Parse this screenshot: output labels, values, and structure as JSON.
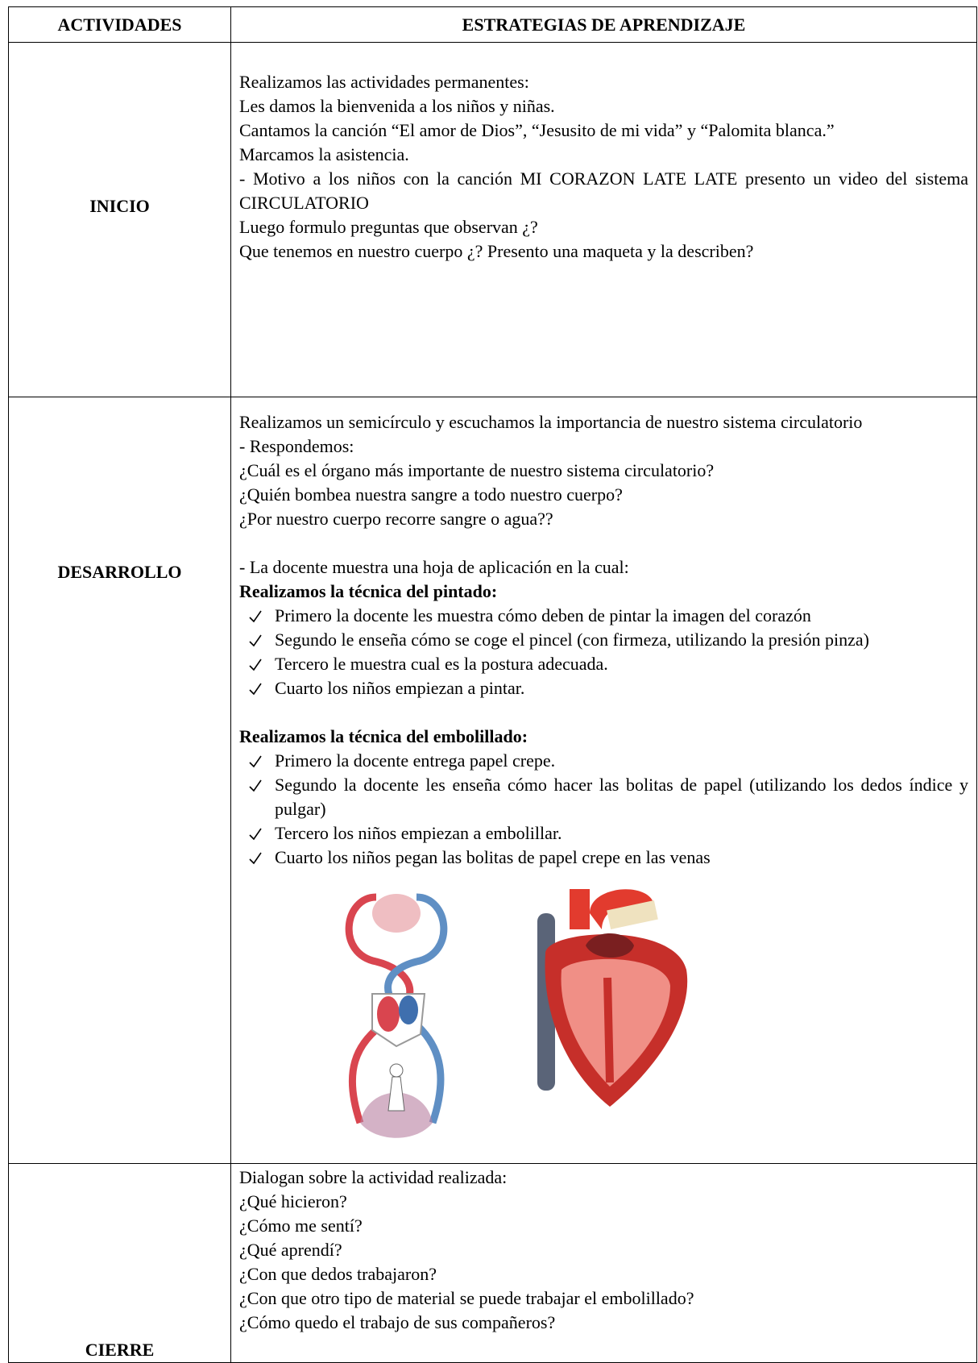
{
  "table": {
    "header": [
      "ACTIVIDADES",
      "ESTRATEGIAS DE APRENDIZAJE"
    ],
    "inicio": {
      "activity": "INICIO",
      "lines": [
        "Realizamos las actividades permanentes:",
        "Les damos la bienvenida a los niños y niñas.",
        "Cantamos la canción “El amor de Dios”, “Jesusito de mi vida” y “Palomita blanca.”",
        "Marcamos la asistencia.",
        "- Motivo a los niños con la canción  MI CORAZON LATE LATE presento un video del sistema CIRCULATORIO",
        "Luego formulo preguntas que observan ¿?",
        "Que tenemos en nuestro cuerpo ¿? Presento una maqueta y la describen?"
      ]
    },
    "desarrollo": {
      "activity": "DESARROLLO",
      "lines": [
        "Realizamos un semicírculo y escuchamos la importancia de nuestro sistema circulatorio",
        "- Respondemos:",
        "¿Cuál es el órgano más importante de nuestro sistema circulatorio?",
        "¿Quién bombea nuestra sangre a todo nuestro cuerpo?",
        "¿Por nuestro cuerpo recorre sangre o agua??"
      ],
      "note": "- La docente muestra una hoja de aplicación en la cual:",
      "sections": [
        {
          "heading": "Realizamos la técnica del pintado:",
          "items": [
            "Primero la docente les muestra cómo deben de pintar la imagen del corazón",
            "Segundo le enseña cómo se coge el pincel (con firmeza, utilizando la presión pinza)",
            "Tercero le muestra cual es la postura adecuada.",
            "Cuarto los niños empiezan a pintar."
          ]
        },
        {
          "heading": "Realizamos la técnica del embolillado:",
          "items": [
            "Primero la docente entrega papel crepe.",
            "Segundo la docente les enseña cómo hacer las bolitas de papel (utilizando los dedos índice y pulgar)",
            "Tercero los niños empiezan a embolillar.",
            "Cuarto los niños pegan las bolitas de papel crepe en las venas"
          ]
        }
      ]
    },
    "cierre": {
      "activity": "CIERRE",
      "lines": [
        "Dialogan sobre la actividad realizada:",
        "¿Qué hicieron?",
        "¿Cómo me sentí?",
        "¿Qué aprendí?",
        "¿Con que dedos trabajaron?",
        "¿Con que otro tipo de material se puede trabajar el embolillado?",
        "¿Cómo quedo el trabajo de sus compañeros?"
      ]
    }
  }
}
